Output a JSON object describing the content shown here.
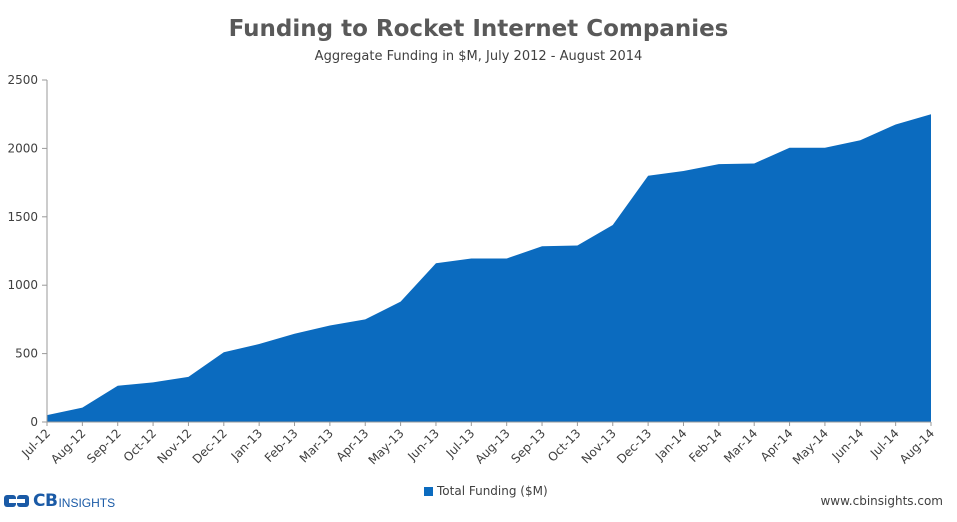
{
  "title": "Funding to Rocket Internet Companies",
  "subtitle": "Aggregate Funding in $M, July 2012 - August 2014",
  "legend_label": "Total Funding ($M)",
  "logo": {
    "brand": "CB",
    "suffix": "INSIGHTS"
  },
  "website": "www.cbinsights.com",
  "colors": {
    "area": "#0b6bbf",
    "axis": "#9a9a9a",
    "logo": "#1a5aa6"
  },
  "chart_data": {
    "type": "area",
    "categories": [
      "Jul-12",
      "Aug-12",
      "Sep-12",
      "Oct-12",
      "Nov-12",
      "Dec-12",
      "Jan-13",
      "Feb-13",
      "Mar-13",
      "Apr-13",
      "May-13",
      "Jun-13",
      "Jul-13",
      "Aug-13",
      "Sep-13",
      "Oct-13",
      "Nov-13",
      "Dec-13",
      "Jan-14",
      "Feb-14",
      "Mar-14",
      "Apr-14",
      "May-14",
      "Jun-14",
      "Jul-14",
      "Aug-14"
    ],
    "series": [
      {
        "name": "Total Funding ($M)",
        "values": [
          50,
          105,
          265,
          290,
          330,
          510,
          570,
          645,
          705,
          750,
          880,
          1160,
          1195,
          1195,
          1285,
          1290,
          1440,
          1800,
          1835,
          1885,
          1890,
          2005,
          2005,
          2060,
          2175,
          2250
        ]
      }
    ],
    "yticks": [
      0,
      500,
      1000,
      1500,
      2000,
      2500
    ],
    "ylim": [
      0,
      2500
    ],
    "grid": false,
    "legend": "bottom-center"
  }
}
